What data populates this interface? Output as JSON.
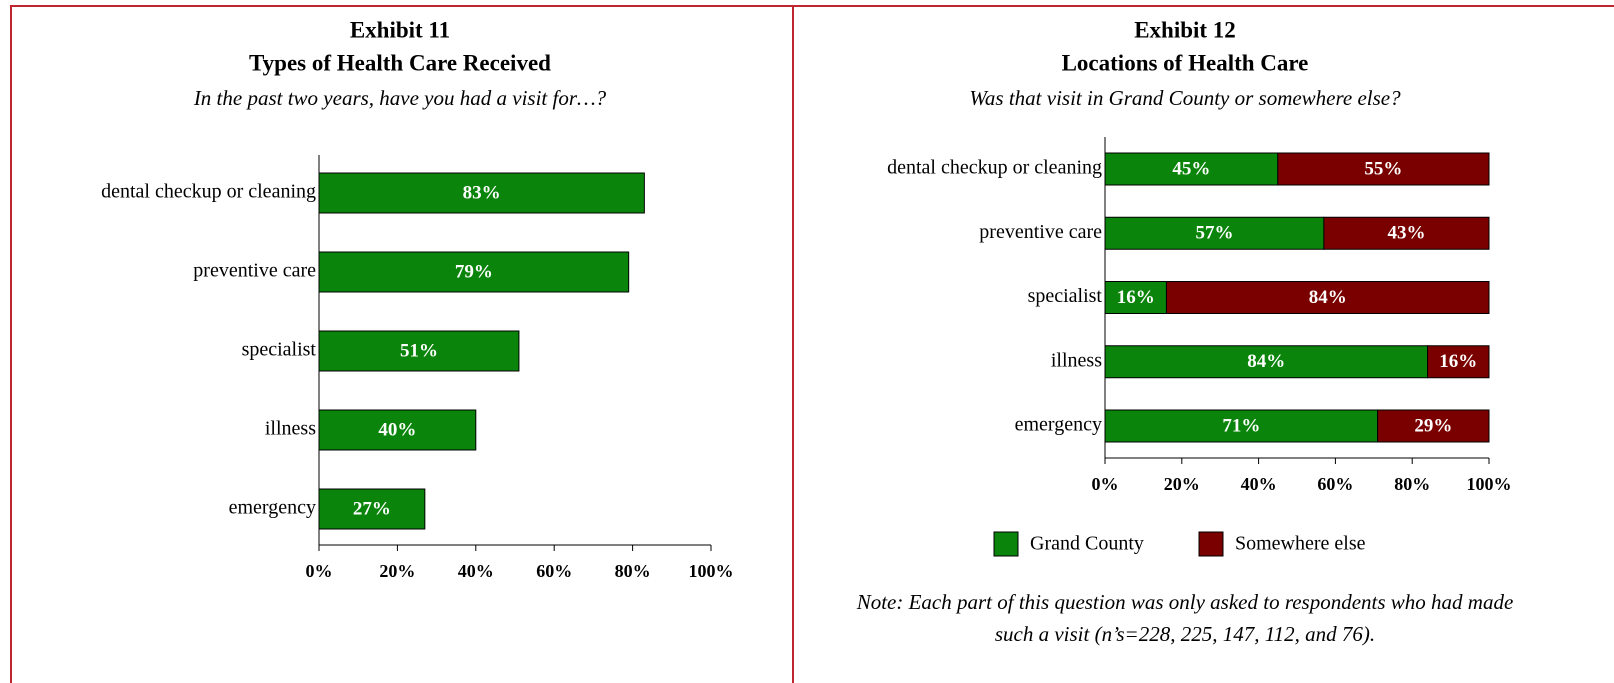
{
  "chart_data": [
    {
      "type": "bar",
      "title": [
        "Exhibit 11",
        "Types of Health Care Received"
      ],
      "subtitle": "In the past two years, have you had a visit for…?",
      "categories": [
        "dental checkup or cleaning",
        "preventive care",
        "specialist",
        "illness",
        "emergency"
      ],
      "series": [
        {
          "color": "#0b840b",
          "values": [
            83,
            79,
            51,
            40,
            27
          ],
          "value_labels": [
            "83%",
            "79%",
            "51%",
            "40%",
            "27%"
          ]
        }
      ],
      "xlim": [
        0,
        100
      ],
      "xticks": [
        {
          "value": 0,
          "label": "0%"
        },
        {
          "value": 20,
          "label": "20%"
        },
        {
          "value": 40,
          "label": "40%"
        },
        {
          "value": 60,
          "label": "60%"
        },
        {
          "value": 80,
          "label": "80%"
        },
        {
          "value": 100,
          "label": "100%"
        }
      ]
    },
    {
      "type": "stacked_bar",
      "title": [
        "Exhibit 12",
        "Locations of Health Care"
      ],
      "subtitle": "Was that visit in Grand County or somewhere else?",
      "categories": [
        "dental checkup or cleaning",
        "preventive care",
        "specialist",
        "illness",
        "emergency"
      ],
      "series": [
        {
          "name": "Grand County",
          "color": "#0b840b",
          "values": [
            45,
            57,
            16,
            84,
            71
          ],
          "value_labels": [
            "45%",
            "57%",
            "16%",
            "84%",
            "71%"
          ]
        },
        {
          "name": "Somewhere else",
          "color": "#7a0000",
          "values": [
            55,
            43,
            84,
            16,
            29
          ],
          "value_labels": [
            "55%",
            "43%",
            "84%",
            "16%",
            "29%"
          ]
        }
      ],
      "xlim": [
        0,
        100
      ],
      "xticks": [
        {
          "value": 0,
          "label": "0%"
        },
        {
          "value": 20,
          "label": "20%"
        },
        {
          "value": 40,
          "label": "40%"
        },
        {
          "value": 60,
          "label": "60%"
        },
        {
          "value": 80,
          "label": "80%"
        },
        {
          "value": 100,
          "label": "100%"
        }
      ],
      "note": [
        "Note: Each part of this question was only asked to respondents who had made",
        "such a visit (n’s=228, 225, 147, 112, and 76)."
      ]
    }
  ]
}
